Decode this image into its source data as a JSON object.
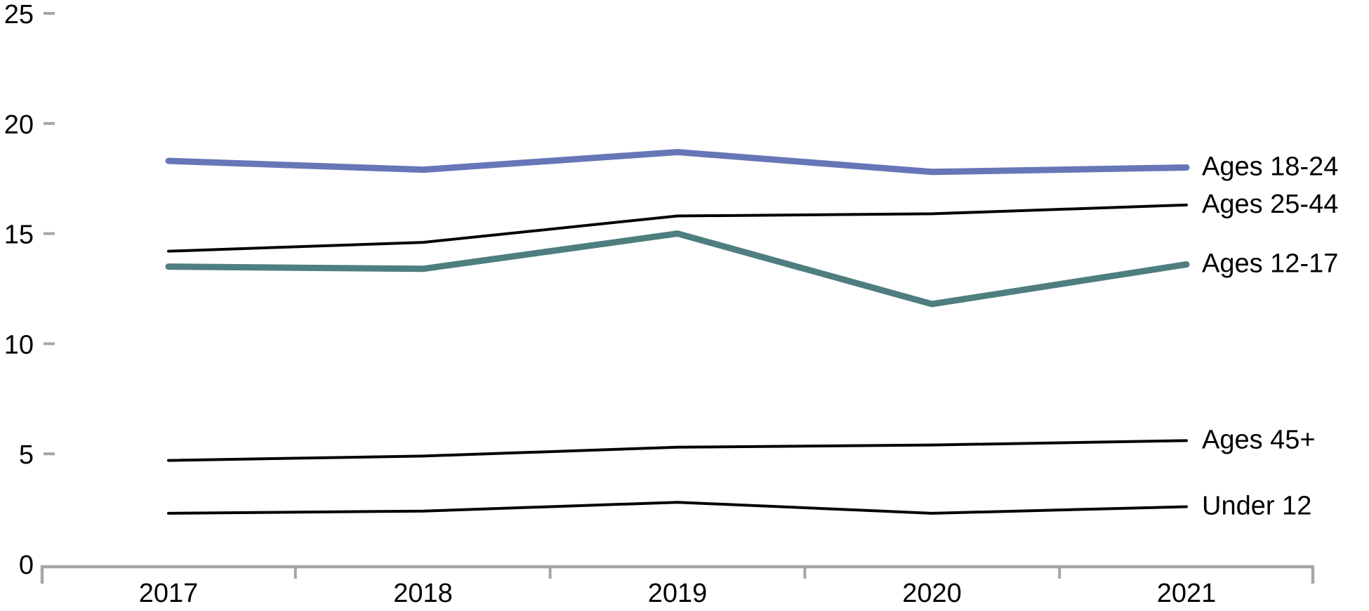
{
  "chart_data": {
    "type": "line",
    "title": "",
    "xlabel": "",
    "ylabel": "",
    "x_categories": [
      "2017",
      "2018",
      "2019",
      "2020",
      "2021"
    ],
    "y_ticks": [
      "25",
      "20",
      "15",
      "10",
      "5",
      "0"
    ],
    "ylim": [
      0,
      25
    ],
    "grid": false,
    "legend_position": "direct-labels-right-of-lines",
    "axis_color": "#A6A6A6",
    "text_color": "#000000",
    "background_color": "#FFFFFF",
    "series": [
      {
        "name": "Ages 18-24",
        "values": [
          18.3,
          17.9,
          18.7,
          17.8,
          18.0
        ],
        "color": "#6676B7",
        "stroke_width": 9
      },
      {
        "name": "Ages 25-44",
        "values": [
          14.2,
          14.6,
          15.8,
          15.9,
          16.3
        ],
        "color": "#000000",
        "stroke_width": 4
      },
      {
        "name": "Ages 12-17",
        "values": [
          13.5,
          13.4,
          15.0,
          11.8,
          13.6
        ],
        "color": "#4E7E7F",
        "stroke_width": 9
      },
      {
        "name": "Ages 45+",
        "values": [
          4.7,
          4.9,
          5.3,
          5.4,
          5.6
        ],
        "color": "#000000",
        "stroke_width": 4
      },
      {
        "name": "Under 12",
        "values": [
          2.3,
          2.4,
          2.8,
          2.3,
          2.6
        ],
        "color": "#000000",
        "stroke_width": 4
      }
    ]
  }
}
